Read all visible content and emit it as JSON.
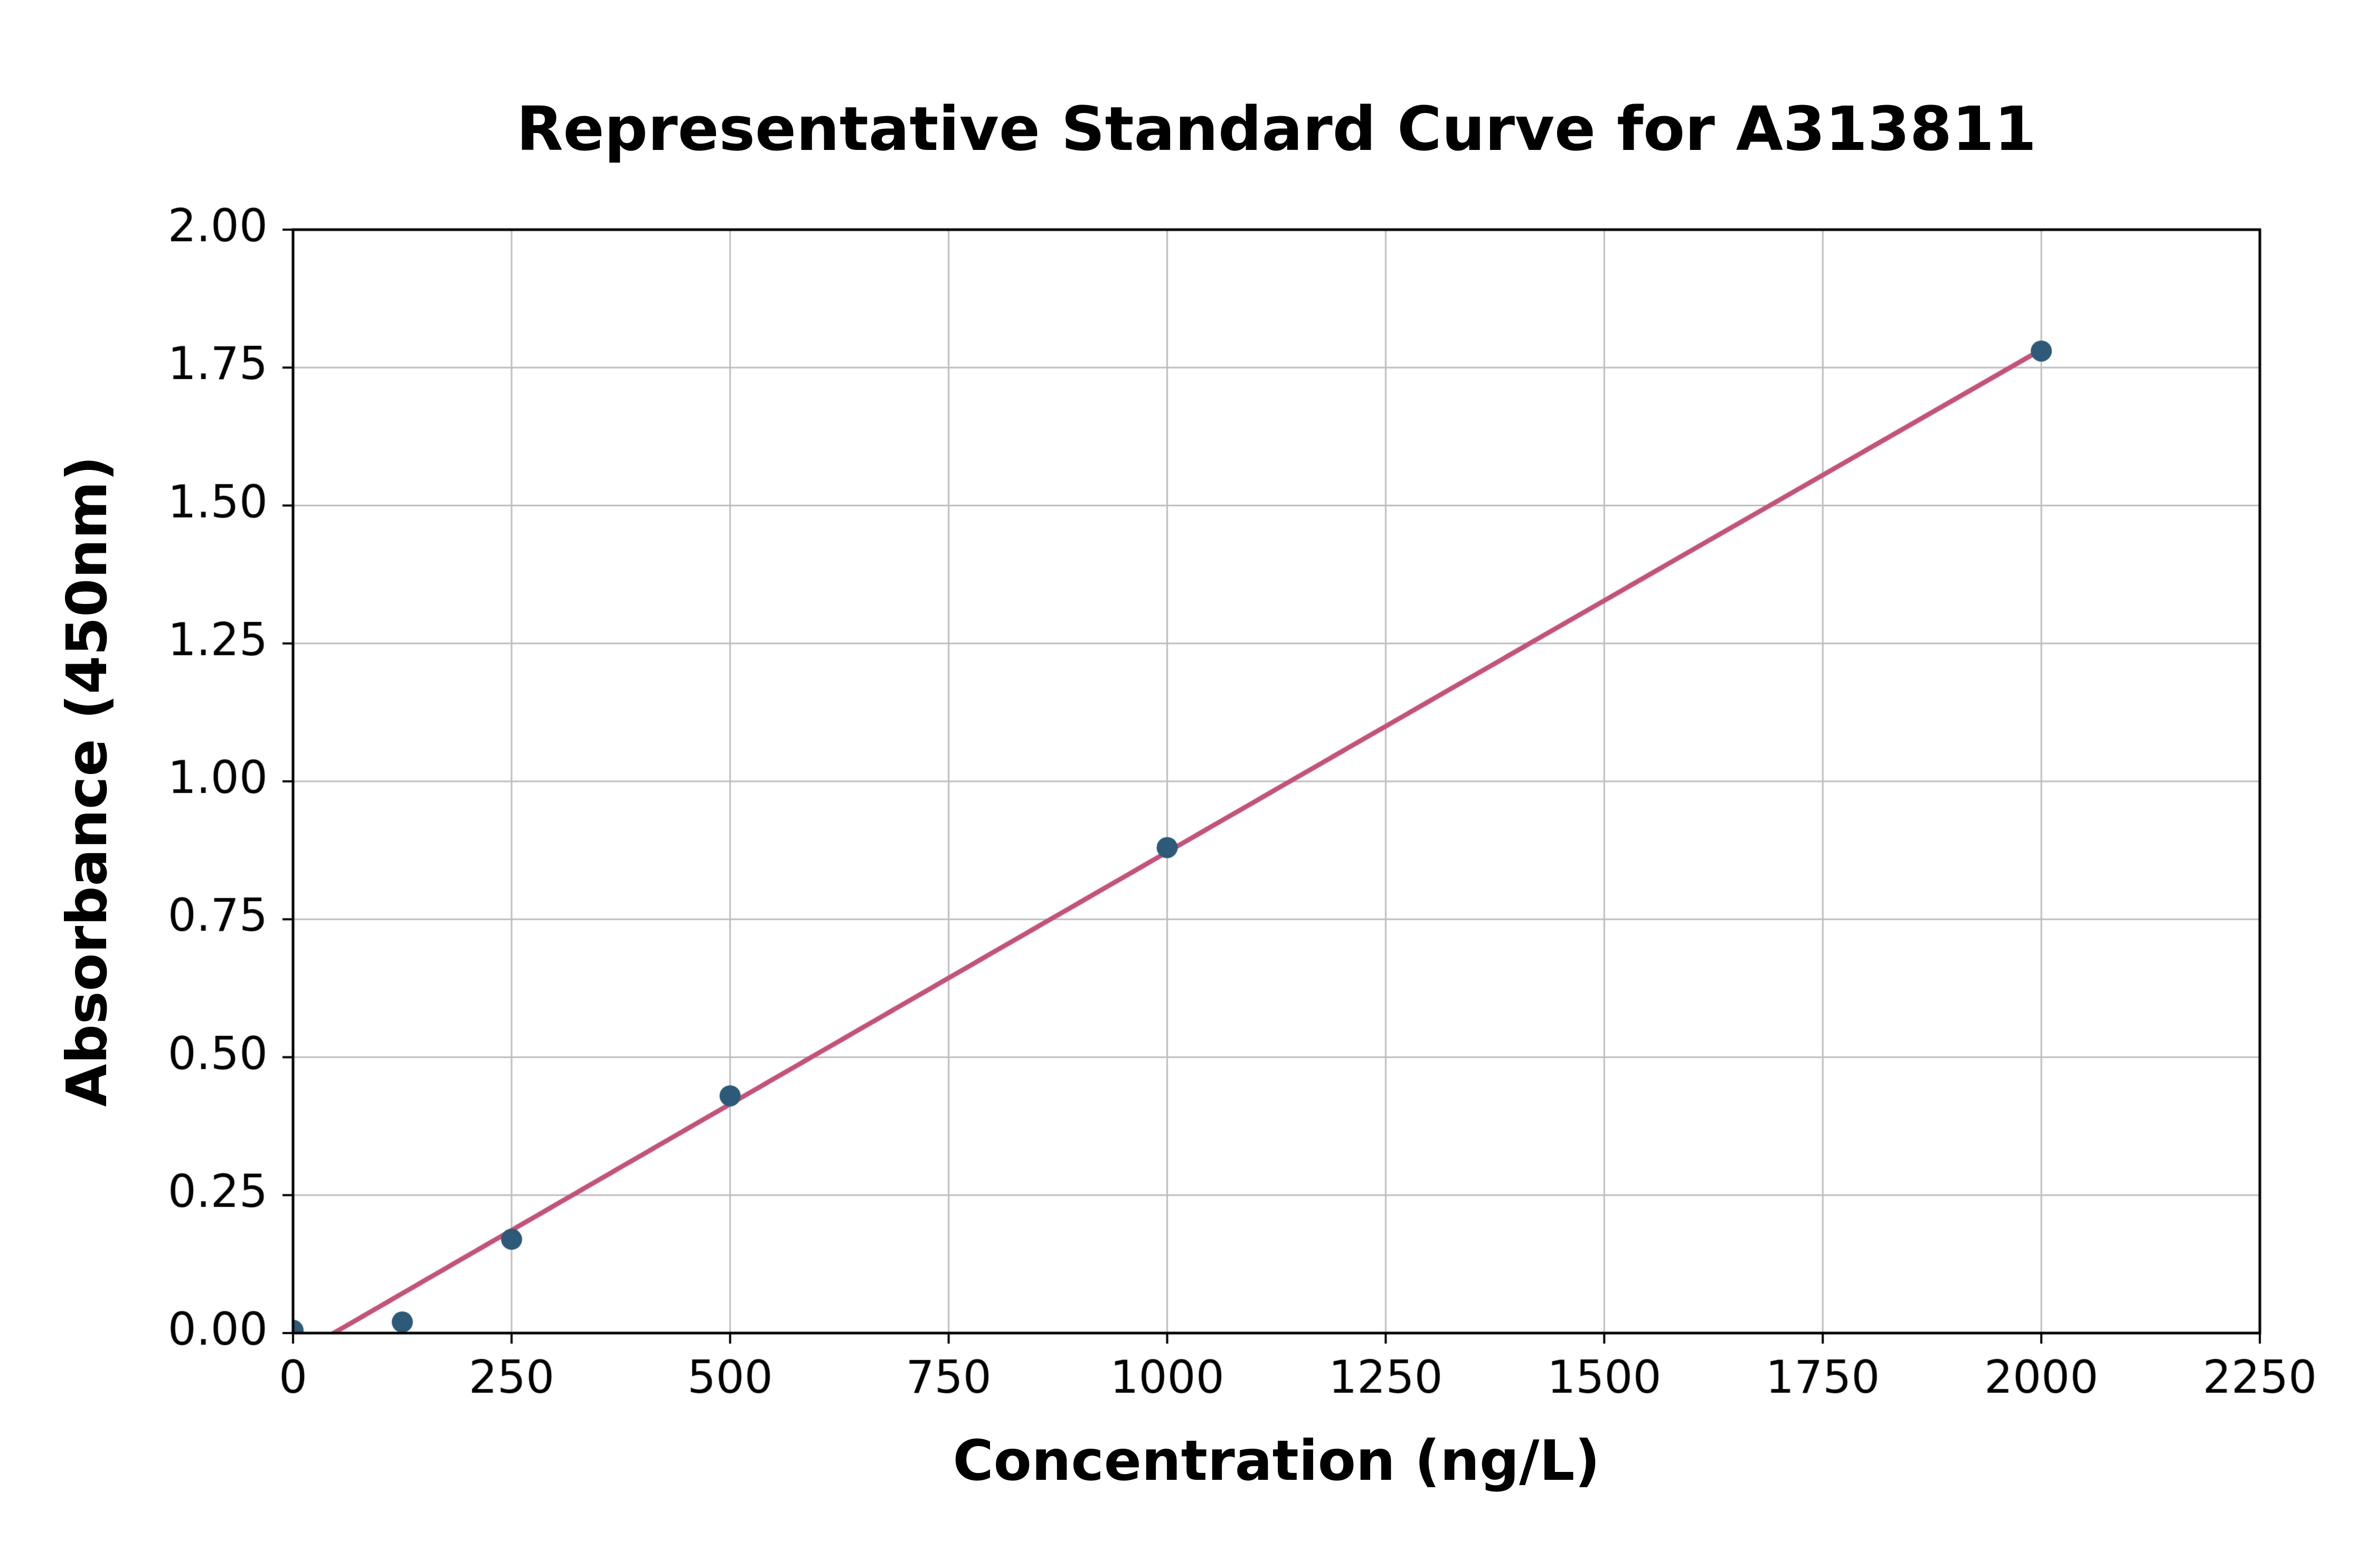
{
  "chart_data": {
    "type": "scatter",
    "title": "Representative Standard Curve for A313811",
    "xlabel": "Concentration (ng/L)",
    "ylabel": "Absorbance (450nm)",
    "x": [
      0,
      125,
      250,
      500,
      1000,
      2000
    ],
    "y": [
      0.005,
      0.02,
      0.17,
      0.43,
      0.88,
      1.78
    ],
    "xlim": [
      0,
      2250
    ],
    "ylim": [
      0,
      2.0
    ],
    "x_ticks": [
      0,
      250,
      500,
      750,
      1000,
      1250,
      1500,
      1750,
      2000,
      2250
    ],
    "y_ticks": [
      0,
      0.25,
      0.5,
      0.75,
      1,
      1.25,
      1.5,
      1.75,
      2
    ],
    "x_tick_decimals": 0,
    "y_tick_decimals": 2,
    "grid": true,
    "legend": "none",
    "fit": "quadratic",
    "colors": {
      "point": "#2e5a7a",
      "curve": "#c4537b",
      "grid": "#bdbdbd",
      "axis": "#000000",
      "background": "#ffffff",
      "text": "#000000"
    }
  }
}
